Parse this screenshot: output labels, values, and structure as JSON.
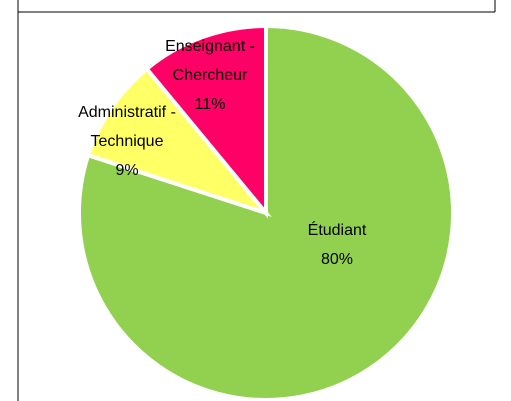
{
  "chart_data": {
    "type": "pie",
    "categories": [
      "Étudiant",
      "Administratif - Technique",
      "Enseignant - Chercheur"
    ],
    "values": [
      80,
      9,
      11
    ],
    "value_labels": [
      "80%",
      "9%",
      "11%"
    ],
    "colors": [
      "#92d050",
      "#ffff66",
      "#ff0066"
    ]
  }
}
